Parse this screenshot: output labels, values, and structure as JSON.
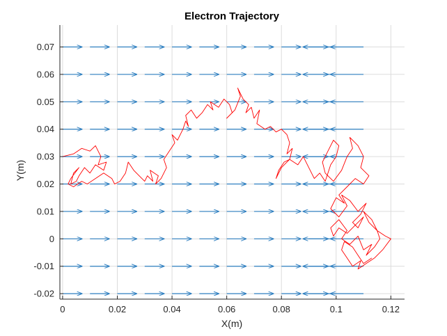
{
  "chart_data": {
    "type": "line",
    "title": "Electron Trajectory",
    "xlabel": "X(m)",
    "ylabel": "Y(m)",
    "xlim": [
      -0.001,
      0.125
    ],
    "ylim": [
      -0.022,
      0.078
    ],
    "grid": true,
    "x_ticks": [
      0,
      0.02,
      0.04,
      0.06,
      0.08,
      0.1,
      0.12
    ],
    "x_tick_labels": [
      "0",
      "0.02",
      "0.04",
      "0.06",
      "0.08",
      "0.1",
      "0.12"
    ],
    "y_ticks": [
      -0.02,
      -0.01,
      0,
      0.01,
      0.02,
      0.03,
      0.04,
      0.05,
      0.06,
      0.07
    ],
    "y_tick_labels": [
      "-0.02",
      "-0.01",
      "0",
      "0.01",
      "0.02",
      "0.03",
      "0.04",
      "0.05",
      "0.06",
      "0.07"
    ],
    "colors": {
      "field_arrows": "#2e7fc0",
      "trajectory": "#ff0000",
      "grid": "#dcdcdc",
      "axes": "#262626"
    },
    "field_arrows": {
      "x_starts": [
        0,
        0.01,
        0.02,
        0.03,
        0.04,
        0.05,
        0.06,
        0.07,
        0.08,
        0.09
      ],
      "y_rows": [
        -0.02,
        -0.01,
        0,
        0.01,
        0.02,
        0.03,
        0.04,
        0.05,
        0.06,
        0.07
      ],
      "dx": 0.007,
      "reversed_x_starts": [
        0.1,
        0.11
      ],
      "reversed_dx": -0.012
    },
    "series": [
      {
        "type": "line",
        "x": [
          0,
          0.004,
          0.007,
          0.01,
          0.012,
          0.014,
          0.013,
          0.016,
          0.015,
          0.012,
          0.01,
          0.008,
          0.006,
          0.005,
          0.003,
          0.004,
          0.006,
          0.003,
          0.002,
          0.004,
          0.007,
          0.009,
          0.012,
          0.015,
          0.018,
          0.019,
          0.021,
          0.023,
          0.024,
          0.026,
          0.028,
          0.03,
          0.031,
          0.033,
          0.032,
          0.035,
          0.034,
          0.036,
          0.038,
          0.037,
          0.039,
          0.041,
          0.04,
          0.042,
          0.044,
          0.045,
          0.046,
          0.045,
          0.047,
          0.049,
          0.051,
          0.053,
          0.055,
          0.054,
          0.057,
          0.059,
          0.061,
          0.062,
          0.06,
          0.063,
          0.065,
          0.064,
          0.066,
          0.068,
          0.067,
          0.069,
          0.07,
          0.072,
          0.071,
          0.074,
          0.076,
          0.078,
          0.08,
          0.082,
          0.083,
          0.082,
          0.084,
          0.083,
          0.081,
          0.079,
          0.078,
          0.08,
          0.083,
          0.086,
          0.088,
          0.09,
          0.092,
          0.094,
          0.096,
          0.097,
          0.098,
          0.1,
          0.101,
          0.099,
          0.097,
          0.095,
          0.096,
          0.099,
          0.102,
          0.104,
          0.106,
          0.105,
          0.108,
          0.11,
          0.109,
          0.112,
          0.11,
          0.107,
          0.104,
          0.101,
          0.103,
          0.1,
          0.098,
          0.101,
          0.104,
          0.102,
          0.105,
          0.108,
          0.111,
          0.109,
          0.106,
          0.108,
          0.11,
          0.107,
          0.104,
          0.101,
          0.099,
          0.098,
          0.101,
          0.104,
          0.102,
          0.105,
          0.108,
          0.11,
          0.113,
          0.111,
          0.114,
          0.116,
          0.115,
          0.113,
          0.11,
          0.112,
          0.115,
          0.118,
          0.12,
          0.117,
          0.114,
          0.111,
          0.108,
          0.109,
          0.106,
          0.104,
          0.102,
          0.103,
          0.106,
          0.108,
          0.11,
          0.113
        ],
        "y": [
          0.03,
          0.031,
          0.033,
          0.032,
          0.034,
          0.03,
          0.027,
          0.028,
          0.025,
          0.027,
          0.024,
          0.026,
          0.023,
          0.021,
          0.02,
          0.024,
          0.026,
          0.022,
          0.02,
          0.019,
          0.021,
          0.02,
          0.022,
          0.024,
          0.022,
          0.02,
          0.021,
          0.024,
          0.028,
          0.025,
          0.023,
          0.021,
          0.023,
          0.021,
          0.025,
          0.023,
          0.02,
          0.022,
          0.026,
          0.029,
          0.032,
          0.035,
          0.038,
          0.036,
          0.04,
          0.043,
          0.041,
          0.045,
          0.047,
          0.044,
          0.046,
          0.049,
          0.047,
          0.05,
          0.048,
          0.051,
          0.049,
          0.046,
          0.044,
          0.047,
          0.052,
          0.055,
          0.051,
          0.049,
          0.046,
          0.048,
          0.044,
          0.047,
          0.042,
          0.04,
          0.041,
          0.039,
          0.04,
          0.038,
          0.035,
          0.031,
          0.033,
          0.029,
          0.028,
          0.025,
          0.022,
          0.026,
          0.029,
          0.027,
          0.03,
          0.026,
          0.022,
          0.024,
          0.021,
          0.024,
          0.027,
          0.03,
          0.034,
          0.036,
          0.032,
          0.028,
          0.024,
          0.021,
          0.025,
          0.03,
          0.033,
          0.037,
          0.034,
          0.03,
          0.026,
          0.023,
          0.02,
          0.022,
          0.019,
          0.016,
          0.013,
          0.015,
          0.011,
          0.008,
          0.012,
          0.016,
          0.014,
          0.01,
          0.013,
          0.009,
          0.006,
          0.004,
          0.008,
          0.005,
          0.002,
          0.004,
          0.001,
          0.004,
          0.007,
          0.003,
          0.0,
          -0.002,
          0.001,
          -0.004,
          -0.002,
          -0.006,
          -0.003,
          0.0,
          0.003,
          0.007,
          0.01,
          0.006,
          0.003,
          0.001,
          0.0,
          -0.004,
          -0.007,
          -0.009,
          -0.011,
          -0.008,
          -0.01,
          -0.007,
          -0.004,
          -0.001,
          -0.003,
          -0.006,
          -0.009,
          -0.007
        ]
      }
    ]
  }
}
